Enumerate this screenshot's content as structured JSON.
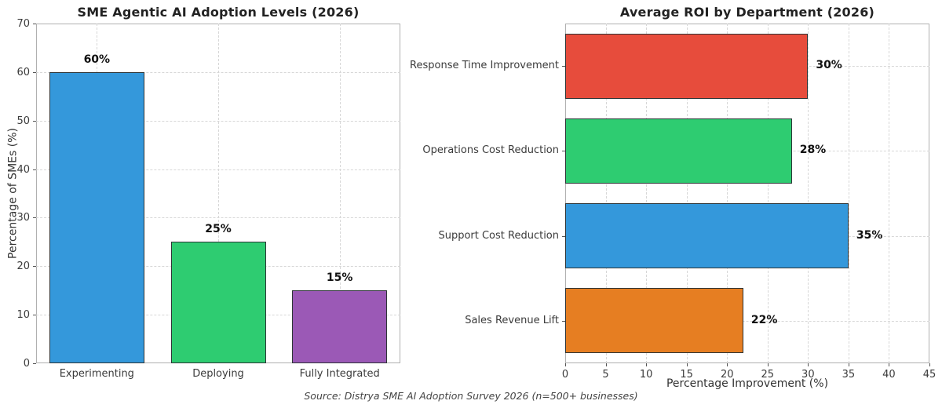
{
  "figure": {
    "background": "#ffffff"
  },
  "chart_data": [
    {
      "type": "bar",
      "title": "SME Agentic AI Adoption Levels (2026)",
      "categories": [
        "Experimenting",
        "Deploying",
        "Fully Integrated"
      ],
      "values": [
        60,
        25,
        15
      ],
      "value_labels": [
        "60%",
        "25%",
        "15%"
      ],
      "bar_colors": [
        "#3498db",
        "#2ecc71",
        "#9b59b6"
      ],
      "bar_edge_color": "#2d3436",
      "xlabel": "",
      "ylabel": "Percentage of SMEs (%)",
      "ylim": [
        0,
        70
      ],
      "yticks": [
        0,
        10,
        20,
        30,
        40,
        50,
        60,
        70
      ],
      "grid": true,
      "legend": false
    },
    {
      "type": "bar-horizontal",
      "title": "Average ROI by Department (2026)",
      "categories": [
        "Response Time Improvement",
        "Operations Cost Reduction",
        "Support Cost Reduction",
        "Sales Revenue Lift"
      ],
      "values": [
        30,
        28,
        35,
        22
      ],
      "value_labels": [
        "30%",
        "28%",
        "35%",
        "22%"
      ],
      "bar_colors": [
        "#e74c3c",
        "#2ecc71",
        "#3498db",
        "#e67e22"
      ],
      "bar_edge_color": "#2d3436",
      "xlabel": "Percentage Improvement (%)",
      "ylabel": "",
      "xlim": [
        0,
        45
      ],
      "xticks": [
        0,
        5,
        10,
        15,
        20,
        25,
        30,
        35,
        40,
        45
      ],
      "grid": true,
      "legend": false
    }
  ],
  "footer": {
    "text": "Source: Distrya SME AI Adoption Survey 2026 (n=500+ businesses)"
  }
}
